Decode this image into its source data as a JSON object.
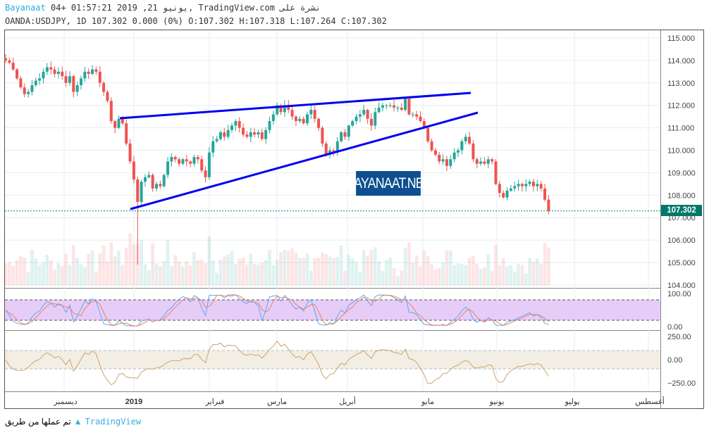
{
  "header": {
    "brand": "Bayanaat",
    "line1": " 04+ 01:57:21 2019 ,21 يونيو, TradingView.com نشرة على",
    "line2": "OANDA:USDJPY, 1D 107.302 0.000 (0%) O:107.302 H:107.318 L:107.264 C:107.302"
  },
  "price_axis": [
    "115.000",
    "114.000",
    "113.000",
    "112.000",
    "111.000",
    "110.000",
    "109.000",
    "108.000",
    "107.000",
    "106.000",
    "105.000",
    "104.000"
  ],
  "current_price": "107.302",
  "stoch_axis": [
    "100.00",
    "0.00"
  ],
  "cci_axis": [
    "250.00",
    "0.00",
    "−250.00"
  ],
  "time_axis": [
    "ديسمبر",
    "2019",
    "فبراير",
    "مارس",
    "أبريل",
    "مايو",
    "يونيو",
    "يوليو",
    "أغسطس"
  ],
  "watermark": "BAYANAAT.NET",
  "footer": {
    "text": "تم عملها من طريق",
    "brand": "TradingView"
  },
  "colors": {
    "up": "#26a69a",
    "down": "#ef5350",
    "trendline": "#0000ee",
    "stoch_band": "#e6cdf7",
    "cci_band": "#f3eee4"
  },
  "chart_data": {
    "type": "candlestick",
    "symbol": "OANDA:USDJPY",
    "interval": "1D",
    "ylim": [
      104,
      115
    ],
    "close": [
      114.0,
      113.9,
      113.6,
      113.2,
      112.8,
      112.5,
      112.6,
      112.9,
      113.1,
      113.2,
      113.5,
      113.7,
      113.6,
      113.4,
      113.5,
      113.3,
      113.0,
      113.3,
      112.6,
      112.9,
      113.2,
      113.5,
      113.4,
      113.6,
      113.5,
      113.0,
      112.6,
      112.2,
      111.3,
      111.0,
      111.4,
      111.2,
      110.3,
      109.5,
      108.7,
      107.7,
      108.6,
      108.8,
      108.9,
      108.3,
      108.5,
      108.4,
      108.9,
      109.5,
      109.7,
      109.6,
      109.4,
      109.6,
      109.5,
      109.4,
      109.7,
      109.6,
      109.1,
      108.8,
      109.9,
      110.4,
      110.5,
      110.8,
      110.6,
      110.9,
      111.1,
      111.3,
      111.0,
      110.7,
      110.6,
      110.8,
      110.7,
      110.8,
      110.5,
      110.9,
      111.3,
      111.6,
      112.0,
      111.7,
      112.0,
      111.8,
      111.5,
      111.3,
      111.4,
      111.2,
      111.6,
      111.8,
      111.4,
      111.0,
      110.3,
      109.8,
      110.0,
      109.9,
      110.4,
      110.8,
      110.6,
      111.1,
      111.3,
      111.5,
      111.6,
      111.8,
      111.4,
      111.1,
      111.7,
      111.9,
      112.0,
      112.0,
      112.0,
      111.9,
      111.9,
      111.8,
      112.3,
      111.6,
      111.6,
      111.5,
      111.3,
      111.0,
      110.4,
      110.0,
      109.8,
      109.5,
      109.6,
      109.3,
      109.6,
      109.9,
      110.0,
      110.4,
      110.6,
      110.3,
      109.6,
      109.4,
      109.5,
      109.4,
      109.6,
      109.5,
      108.5,
      108.1,
      107.9,
      108.2,
      108.3,
      108.4,
      108.5,
      108.4,
      108.5,
      108.6,
      108.4,
      108.5,
      108.3,
      107.8,
      107.302
    ]
  }
}
